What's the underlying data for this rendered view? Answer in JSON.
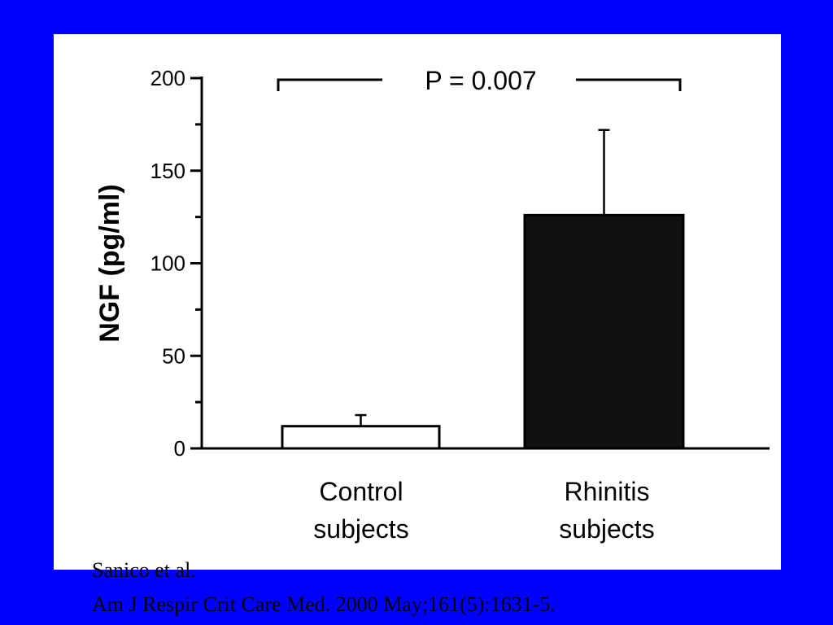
{
  "slide": {
    "background": "#0000FF",
    "caption": {
      "line1": "Sanico et al.",
      "line2": "Am J Respir Crit Care Med. 2000 May;161(5):1631-5."
    }
  },
  "chart_data": {
    "type": "bar",
    "ylabel": "NGF (pg/ml)",
    "ylim": [
      0,
      200
    ],
    "yticks": [
      0,
      50,
      100,
      150,
      200
    ],
    "yminor": [
      25,
      75,
      125,
      175
    ],
    "categories": [
      "Control\nsubjects",
      "Rhinitis\nsubjects"
    ],
    "values": [
      12,
      126
    ],
    "error_upper": [
      18,
      172
    ],
    "bar_fill": [
      "#FFFFFF",
      "#111111"
    ],
    "annotation": "P = 0.007",
    "grid": false,
    "legend": "none"
  }
}
